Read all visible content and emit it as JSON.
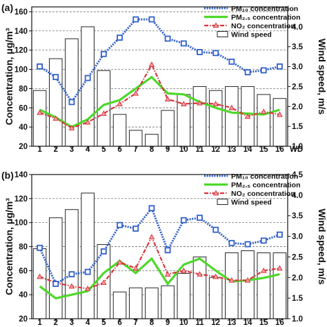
{
  "chart_data": [
    {
      "type": "bar+line",
      "panel_label": "(a)",
      "xlabel": "WD",
      "ylabel": "Concentration, μg/m³",
      "ylabel_right": "Wind speed, m/s",
      "categories": [
        "1",
        "2",
        "3",
        "4",
        "5",
        "6",
        "7",
        "8",
        "9",
        "10",
        "11",
        "12",
        "13",
        "14",
        "15",
        "16"
      ],
      "ylim": [
        20,
        165
      ],
      "yticks": [
        20,
        40,
        60,
        80,
        100,
        120,
        140,
        160
      ],
      "ytick_labels": [
        "20",
        "40",
        "60",
        "80",
        "100",
        "120",
        "140",
        "160"
      ],
      "y2lim": [
        1.0,
        4.5
      ],
      "y2ticks": [
        1.0,
        1.5,
        2.0,
        2.5,
        3.0,
        3.5,
        4.0
      ],
      "y2tick_labels": [
        "1.0",
        "1.5",
        "2.0",
        "2.5",
        "3.0",
        "3.5",
        "4.0"
      ],
      "grid": "horizontal-dashed",
      "legend_position": "top-right",
      "series": [
        {
          "name": "PM₁₀ concentration",
          "role": "pm10",
          "color": "#2f5fc8",
          "style": "dotted-square",
          "values": [
            103,
            92,
            66,
            91,
            116,
            133,
            152,
            152,
            132,
            127,
            118,
            117,
            108,
            97,
            99,
            103
          ]
        },
        {
          "name": "PM₂.₅ concentration",
          "role": "pm25",
          "color": "#4dd82a",
          "style": "solid",
          "values": [
            58,
            50,
            40,
            48,
            63,
            68,
            80,
            92,
            75,
            74,
            66,
            60,
            55,
            54,
            53,
            58
          ]
        },
        {
          "name": "NO₂ concentration",
          "role": "no2",
          "color": "#d8343c",
          "style": "dashdot-triangle",
          "values": [
            55,
            49,
            39,
            45,
            54,
            64,
            75,
            105,
            69,
            64,
            65,
            64,
            60,
            51,
            56,
            53
          ]
        },
        {
          "name": "Wind speed",
          "role": "wind",
          "color": "#ffffff",
          "style": "bar",
          "axis": "right",
          "values": [
            2.4,
            3.2,
            3.7,
            4.0,
            2.9,
            1.8,
            1.4,
            1.3,
            1.9,
            2.3,
            2.5,
            2.4,
            2.5,
            2.5,
            2.3,
            2.2
          ]
        }
      ]
    },
    {
      "type": "bar+line",
      "panel_label": "(b)",
      "xlabel": "",
      "ylabel": "Concentration, μg/m³",
      "ylabel_right": "Wind speed, m/s",
      "categories": [
        "1",
        "2",
        "3",
        "4",
        "5",
        "6",
        "7",
        "8",
        "9",
        "10",
        "11",
        "12",
        "13",
        "14",
        "15",
        "16"
      ],
      "ylim": [
        20,
        140
      ],
      "yticks": [
        20,
        40,
        60,
        80,
        100,
        120,
        140
      ],
      "ytick_labels": [
        "20",
        "40",
        "60",
        "80",
        "100",
        "120",
        "140"
      ],
      "y2lim": [
        1.0,
        4.5
      ],
      "y2ticks": [
        1.0,
        1.5,
        2.0,
        2.5,
        3.0,
        3.5,
        4.0,
        4.5
      ],
      "y2tick_labels": [
        "1.0",
        "1.5",
        "2.0",
        "2.5",
        "3.0",
        "3.5",
        "4.0",
        "4.5"
      ],
      "grid": "horizontal-dashed",
      "legend_position": "top-right",
      "series": [
        {
          "name": "PM₁₀ concentration",
          "role": "pm10",
          "color": "#2f5fc8",
          "style": "dotted-square",
          "values": [
            79,
            49,
            57,
            59,
            76,
            98,
            95,
            112,
            77,
            102,
            104,
            94,
            83,
            82,
            85,
            90
          ]
        },
        {
          "name": "PM₂.₅ concentration",
          "role": "pm25",
          "color": "#4dd82a",
          "style": "solid",
          "values": [
            47,
            37,
            40,
            43,
            58,
            68,
            58,
            70,
            49,
            65,
            70,
            60,
            51,
            52,
            54,
            57
          ]
        },
        {
          "name": "NO₂ concentration",
          "role": "no2",
          "color": "#d8343c",
          "style": "dashdot-triangle",
          "values": [
            55,
            50,
            47,
            45,
            50,
            67,
            62,
            88,
            57,
            60,
            57,
            55,
            52,
            52,
            60,
            62
          ]
        },
        {
          "name": "Wind speed",
          "role": "wind",
          "color": "#ffffff",
          "style": "bar",
          "axis": "right",
          "values": [
            2.7,
            3.45,
            3.65,
            4.05,
            2.8,
            1.65,
            1.75,
            1.75,
            1.8,
            2.1,
            2.5,
            2.0,
            2.6,
            2.65,
            2.6,
            2.6
          ]
        }
      ]
    }
  ]
}
